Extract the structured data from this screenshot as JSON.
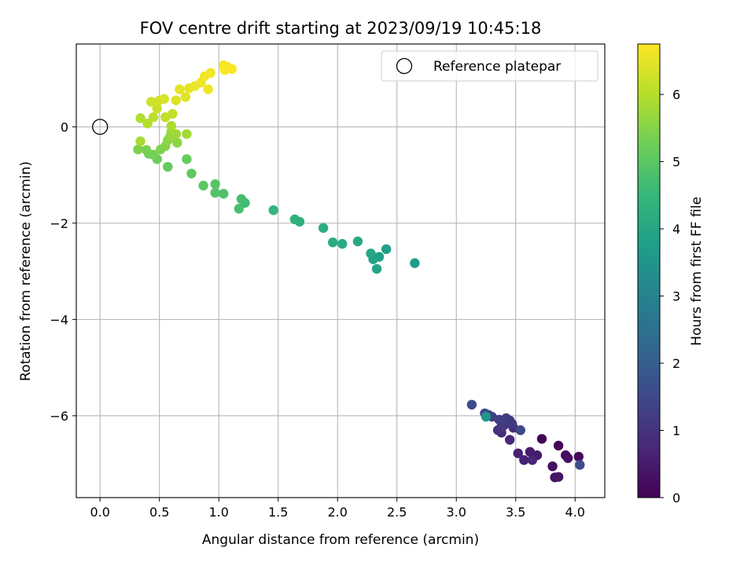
{
  "chart_data": {
    "type": "scatter",
    "title": "FOV centre drift starting at 2023/09/19 10:45:18",
    "xlabel": "Angular distance from reference (arcmin)",
    "ylabel": "Rotation from reference (arcmin)",
    "xlim": [
      -0.2,
      4.25
    ],
    "ylim": [
      -7.7,
      1.72
    ],
    "x_ticks": [
      0.0,
      0.5,
      1.0,
      1.5,
      2.0,
      2.5,
      3.0,
      3.5,
      4.0
    ],
    "x_tick_labels": [
      "0.0",
      "0.5",
      "1.0",
      "1.5",
      "2.0",
      "2.5",
      "3.0",
      "3.5",
      "4.0"
    ],
    "y_ticks": [
      0,
      -2,
      -4,
      -6
    ],
    "y_tick_labels": [
      "0",
      "−2",
      "−4",
      "−6"
    ],
    "grid": true,
    "legend": {
      "position": "top-right",
      "label": "Reference platepar"
    },
    "reference_point": {
      "x": 0.0,
      "y": 0.0
    },
    "colorbar": {
      "label": "Hours from first FF file",
      "colormap": "viridis",
      "range": [
        0,
        6.75
      ],
      "ticks": [
        0,
        1,
        2,
        3,
        4,
        5,
        6
      ],
      "tick_labels": [
        "0",
        "1",
        "2",
        "3",
        "4",
        "5",
        "6"
      ]
    },
    "viridis_stops": [
      "#440154",
      "#482878",
      "#3e4989",
      "#31688e",
      "#26828e",
      "#1f9e89",
      "#35b779",
      "#6ece58",
      "#b5de2b",
      "#fde725"
    ],
    "points": [
      [
        3.72,
        -6.48,
        0.05
      ],
      [
        3.86,
        -6.62,
        0.1
      ],
      [
        4.03,
        -6.85,
        0.15
      ],
      [
        3.92,
        -6.82,
        0.2
      ],
      [
        3.94,
        -6.88,
        0.25
      ],
      [
        3.81,
        -7.05,
        0.3
      ],
      [
        3.83,
        -7.28,
        0.35
      ],
      [
        3.86,
        -7.27,
        0.4
      ],
      [
        3.65,
        -6.85,
        0.45
      ],
      [
        3.68,
        -6.82,
        0.5
      ],
      [
        3.62,
        -6.75,
        0.55
      ],
      [
        3.52,
        -6.78,
        0.6
      ],
      [
        3.57,
        -6.92,
        0.65
      ],
      [
        3.64,
        -6.92,
        0.7
      ],
      [
        3.45,
        -6.5,
        0.75
      ],
      [
        3.38,
        -6.35,
        0.8
      ],
      [
        3.48,
        -6.25,
        0.85
      ],
      [
        3.44,
        -6.15,
        0.9
      ],
      [
        3.35,
        -6.3,
        0.95
      ],
      [
        3.4,
        -6.2,
        1.0
      ],
      [
        3.45,
        -6.1,
        1.05
      ],
      [
        3.47,
        -6.17,
        1.1
      ],
      [
        3.38,
        -6.22,
        1.15
      ],
      [
        3.42,
        -6.05,
        1.2
      ],
      [
        3.36,
        -6.08,
        1.25
      ],
      [
        3.3,
        -6.02,
        1.3
      ],
      [
        3.27,
        -5.98,
        1.35
      ],
      [
        3.24,
        -5.95,
        1.4
      ],
      [
        3.54,
        -6.3,
        1.45
      ],
      [
        3.13,
        -5.77,
        1.5
      ],
      [
        4.04,
        -7.02,
        1.6
      ],
      [
        3.25,
        -6.02,
        3.5
      ],
      [
        2.65,
        -2.83,
        3.7
      ],
      [
        2.41,
        -2.54,
        3.8
      ],
      [
        2.35,
        -2.7,
        3.85
      ],
      [
        2.3,
        -2.75,
        3.9
      ],
      [
        2.33,
        -2.95,
        3.95
      ],
      [
        2.28,
        -2.63,
        4.0
      ],
      [
        2.17,
        -2.38,
        4.05
      ],
      [
        2.04,
        -2.43,
        4.1
      ],
      [
        1.96,
        -2.4,
        4.15
      ],
      [
        1.88,
        -2.1,
        4.2
      ],
      [
        1.68,
        -1.97,
        4.3
      ],
      [
        1.64,
        -1.92,
        4.35
      ],
      [
        1.46,
        -1.73,
        4.45
      ],
      [
        1.22,
        -1.58,
        4.6
      ],
      [
        1.19,
        -1.5,
        4.7
      ],
      [
        1.17,
        -1.7,
        4.75
      ],
      [
        1.04,
        -1.39,
        4.85
      ],
      [
        0.97,
        -1.37,
        4.9
      ],
      [
        0.97,
        -1.19,
        4.95
      ],
      [
        0.87,
        -1.22,
        5.0
      ],
      [
        0.77,
        -0.97,
        5.05
      ],
      [
        0.57,
        -0.83,
        5.1
      ],
      [
        0.73,
        -0.67,
        5.15
      ],
      [
        0.48,
        -0.67,
        5.2
      ],
      [
        0.41,
        -0.56,
        5.25
      ],
      [
        0.45,
        -0.58,
        5.3
      ],
      [
        0.39,
        -0.48,
        5.35
      ],
      [
        0.32,
        -0.47,
        5.4
      ],
      [
        0.51,
        -0.47,
        5.45
      ],
      [
        0.55,
        -0.4,
        5.5
      ],
      [
        0.57,
        -0.28,
        5.55
      ],
      [
        0.65,
        -0.33,
        5.6
      ],
      [
        0.59,
        -0.2,
        5.65
      ],
      [
        0.6,
        -0.1,
        5.7
      ],
      [
        0.64,
        -0.15,
        5.75
      ],
      [
        0.73,
        -0.15,
        5.8
      ],
      [
        0.34,
        -0.3,
        5.85
      ],
      [
        0.6,
        0.02,
        5.9
      ],
      [
        0.34,
        0.18,
        5.95
      ],
      [
        0.4,
        0.07,
        6.0
      ],
      [
        0.45,
        0.2,
        6.05
      ],
      [
        0.55,
        0.2,
        6.1
      ],
      [
        0.61,
        0.27,
        6.15
      ],
      [
        0.48,
        0.38,
        6.2
      ],
      [
        0.43,
        0.52,
        6.25
      ],
      [
        0.5,
        0.55,
        6.3
      ],
      [
        0.54,
        0.58,
        6.35
      ],
      [
        0.64,
        0.55,
        6.4
      ],
      [
        0.72,
        0.62,
        6.45
      ],
      [
        0.67,
        0.78,
        6.5
      ],
      [
        0.75,
        0.8,
        6.52
      ],
      [
        0.8,
        0.85,
        6.55
      ],
      [
        0.85,
        0.92,
        6.58
      ],
      [
        0.91,
        0.78,
        6.6
      ],
      [
        0.88,
        1.05,
        6.62
      ],
      [
        0.93,
        1.12,
        6.65
      ],
      [
        1.04,
        1.28,
        6.68
      ],
      [
        1.07,
        1.25,
        6.7
      ],
      [
        1.11,
        1.2,
        6.72
      ],
      [
        1.05,
        1.18,
        6.74
      ]
    ]
  }
}
